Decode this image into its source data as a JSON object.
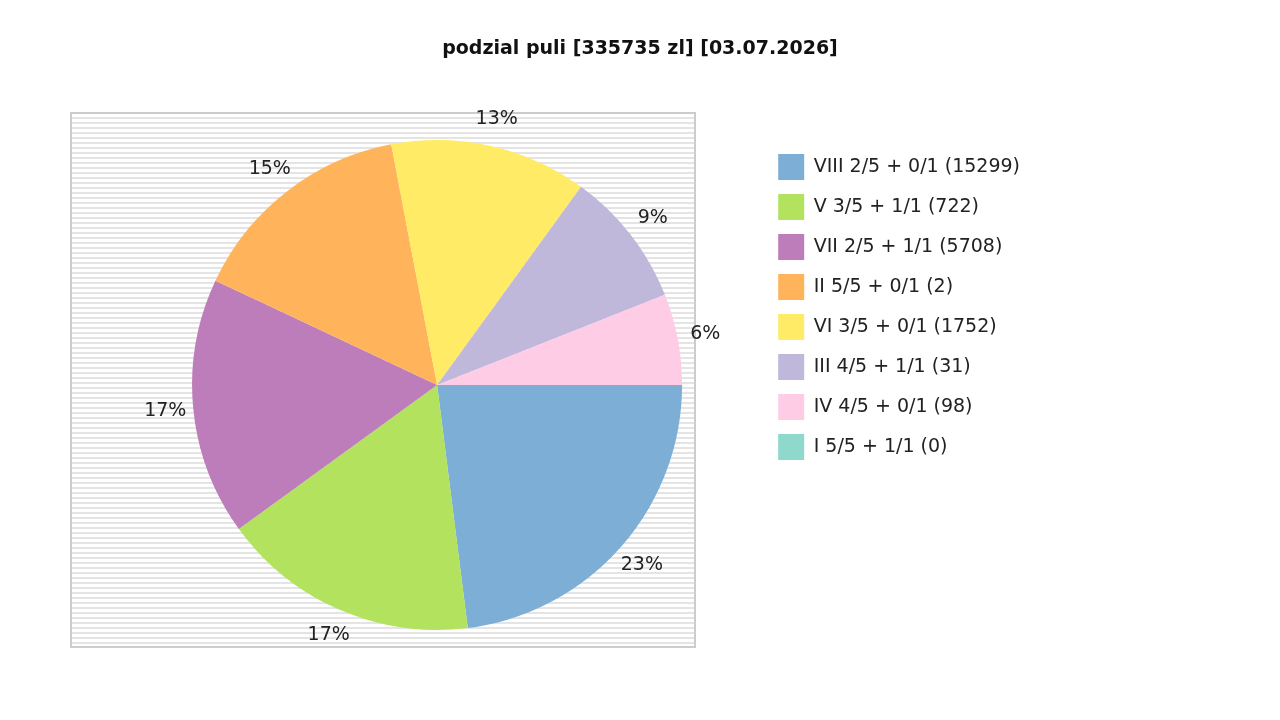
{
  "chart_data": {
    "type": "pie",
    "title": "podzial puli [335735 zl] [03.07.2026]",
    "categories": [
      "VIII 2/5 + 0/1 (15299)",
      "V 3/5 + 1/1 (722)",
      "VII 2/5 + 1/1 (5708)",
      "II 5/5 + 0/1 (2)",
      "VI 3/5 + 0/1 (1752)",
      "III 4/5 + 1/1 (31)",
      "IV 4/5 + 0/1 (98)",
      "I 5/5 + 1/1 (0)"
    ],
    "values": [
      23,
      17,
      17,
      15,
      13,
      9,
      6,
      0
    ],
    "colors": [
      "#7dafd6",
      "#b3e35e",
      "#bd7dbb",
      "#ffb45c",
      "#ffeb66",
      "#bfb8db",
      "#ffcce6",
      "#8ed8cc"
    ],
    "value_labels": [
      "23%",
      "17%",
      "17%",
      "15%",
      "13%",
      "9%",
      "6%",
      null
    ],
    "legend": "right"
  }
}
